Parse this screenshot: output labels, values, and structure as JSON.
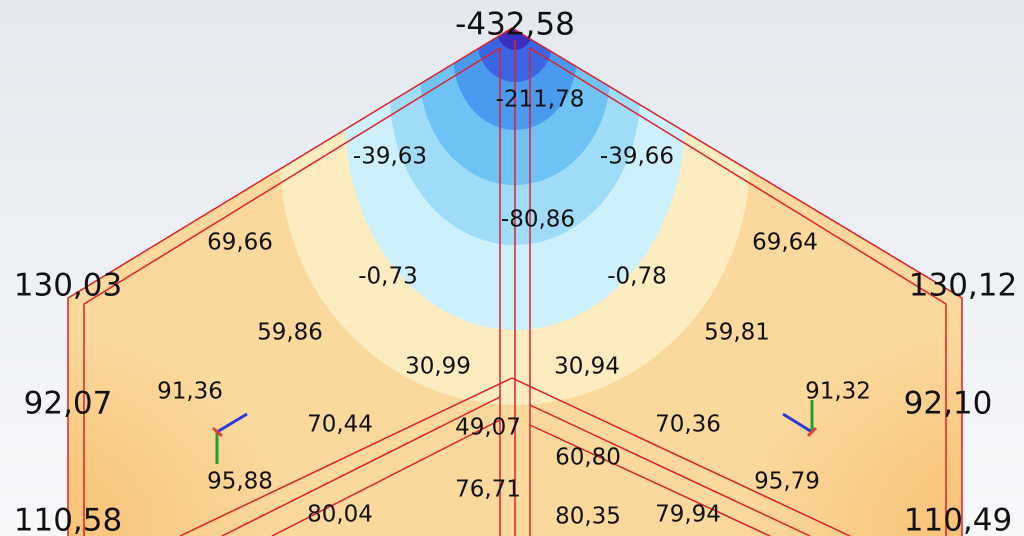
{
  "labels": [
    "-432,58",
    "-211,78",
    "-39,63",
    "-39,66",
    "-80,86",
    "69,66",
    "69,64",
    "130,03",
    "130,12",
    "-0,73",
    "-0,78",
    "59,86",
    "59,81",
    "30,99",
    "30,94",
    "92,07",
    "92,10",
    "91,36",
    "91,32",
    "70,44",
    "70,36",
    "49,07",
    "60,80",
    "95,88",
    "95,79",
    "76,71",
    "80,04",
    "80,35",
    "79,94",
    "110,58",
    "110,49"
  ]
}
